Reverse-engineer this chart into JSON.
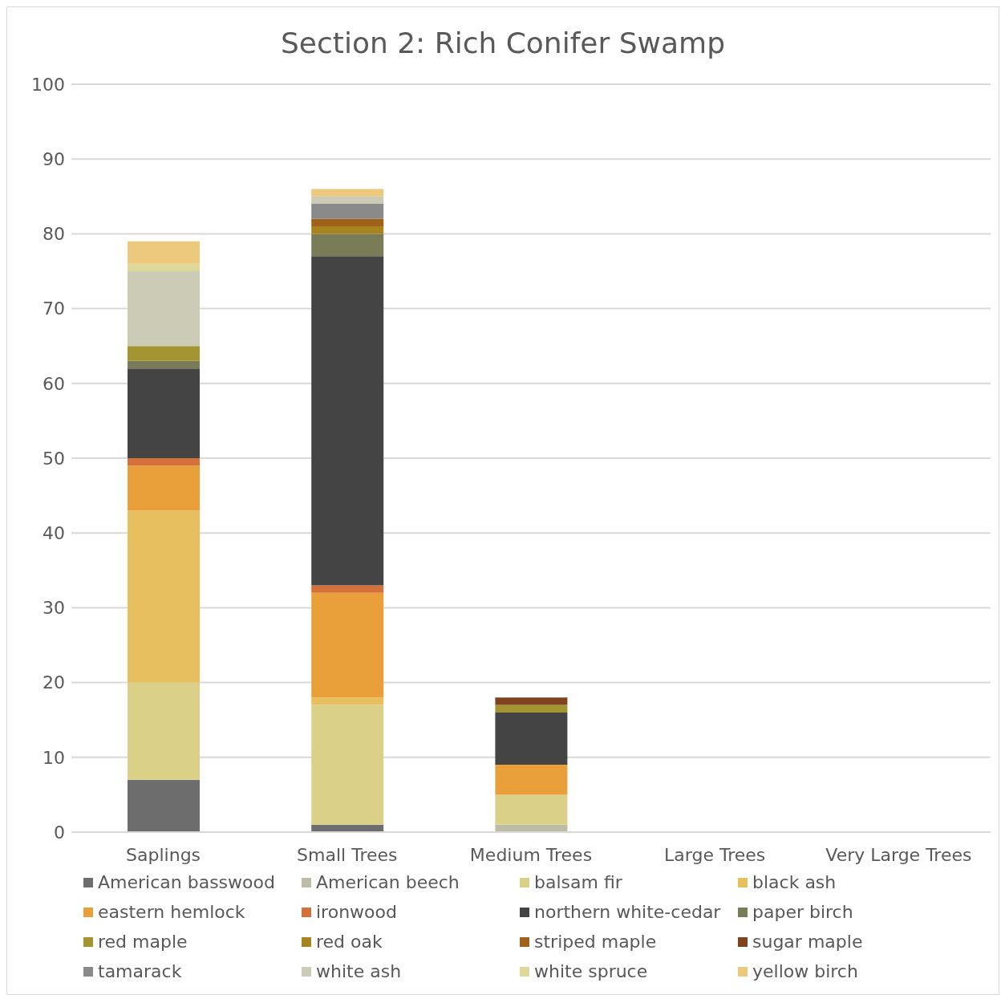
{
  "chart_data": {
    "type": "bar",
    "title": "Section 2: Rich Conifer Swamp",
    "categories": [
      "Saplings",
      "Small Trees",
      "Medium Trees",
      "Large Trees",
      "Very Large Trees"
    ],
    "stacked": true,
    "ylim": [
      0,
      100
    ],
    "yticks": [
      0,
      10,
      20,
      30,
      40,
      50,
      60,
      70,
      80,
      90,
      100
    ],
    "grid": "y",
    "legend": "bottom",
    "series": [
      {
        "name": "American basswood",
        "color": "#6d6d6d",
        "values": [
          7,
          1,
          0,
          0,
          0
        ]
      },
      {
        "name": "American beech",
        "color": "#bdbca4",
        "values": [
          0,
          0,
          1,
          0,
          0
        ]
      },
      {
        "name": "balsam fir",
        "color": "#dbd088",
        "values": [
          13,
          16,
          4,
          0,
          0
        ]
      },
      {
        "name": "black ash",
        "color": "#e8bf5e",
        "values": [
          23,
          1,
          0,
          0,
          0
        ]
      },
      {
        "name": "eastern hemlock",
        "color": "#e9a03b",
        "values": [
          6,
          14,
          4,
          0,
          0
        ]
      },
      {
        "name": "ironwood",
        "color": "#d4713a",
        "values": [
          1,
          1,
          0,
          0,
          0
        ]
      },
      {
        "name": "northern white-cedar",
        "color": "#444444",
        "values": [
          12,
          44,
          7,
          0,
          0
        ]
      },
      {
        "name": "paper birch",
        "color": "#7a7c58",
        "values": [
          1,
          3,
          0,
          0,
          0
        ]
      },
      {
        "name": "red maple",
        "color": "#a39331",
        "values": [
          2,
          0,
          1,
          0,
          0
        ]
      },
      {
        "name": "red oak",
        "color": "#a88420",
        "values": [
          0,
          1,
          0,
          0,
          0
        ]
      },
      {
        "name": "striped maple",
        "color": "#a0621a",
        "values": [
          0,
          1,
          0,
          0,
          0
        ]
      },
      {
        "name": "sugar maple",
        "color": "#7f4320",
        "values": [
          0,
          0,
          1,
          0,
          0
        ]
      },
      {
        "name": "tamarack",
        "color": "#8a8a8a",
        "values": [
          0,
          2,
          0,
          0,
          0
        ]
      },
      {
        "name": "white ash",
        "color": "#cccbb5",
        "values": [
          10,
          1,
          0,
          0,
          0
        ]
      },
      {
        "name": "white spruce",
        "color": "#e0d79a",
        "values": [
          1,
          0,
          0,
          0,
          0
        ]
      },
      {
        "name": "yellow birch",
        "color": "#ecc97d",
        "values": [
          3,
          1,
          0,
          0,
          0
        ]
      }
    ]
  }
}
